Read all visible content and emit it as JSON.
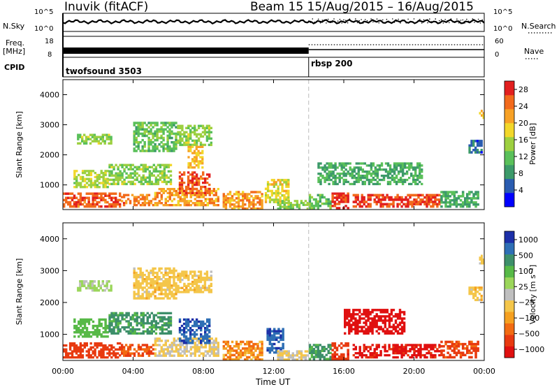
{
  "header": {
    "station": "Inuvik (fitACF)",
    "beam_range": "Beam 15  15/Aug/2015 – 16/Aug/2015"
  },
  "strips": {
    "nsky_label": "N.Sky",
    "nsky_ticks": [
      "10^5",
      "10^0"
    ],
    "nsearch_label": "N.Search",
    "nsearch_ticks": [
      "10^5",
      "10^0"
    ],
    "freq_label": "Freq.",
    "freq_unit": "[MHz]",
    "freq_ticks": [
      "18",
      "8"
    ],
    "nave_label": "Nave",
    "nave_ticks": [
      "60",
      "0"
    ],
    "cpid_label": "CPID",
    "cpid_segments": [
      {
        "label": "twofsound 3503",
        "start_hour": 0
      },
      {
        "label": "rbsp 200",
        "start_hour": 14
      }
    ]
  },
  "chart_data": [
    {
      "type": "heatmap",
      "panel": "power",
      "title": "",
      "xlabel": "Time UT",
      "ylabel": "Slant Range [km]",
      "x_ticks": [
        "00:00",
        "04:00",
        "08:00",
        "12:00",
        "16:00",
        "20:00",
        "00:00"
      ],
      "xlim_hours": [
        0,
        24
      ],
      "ylim": [
        180,
        4500
      ],
      "y_ticks": [
        1000,
        2000,
        3000,
        4000
      ],
      "colorbar": {
        "label": "Power [dB]",
        "ticks": [
          4,
          8,
          12,
          16,
          20,
          24,
          28
        ],
        "range": [
          0,
          30
        ],
        "colors": [
          "#0000ff",
          "#2a5cb0",
          "#3c9a6a",
          "#5ac05a",
          "#9dd040",
          "#f2d72a",
          "#f7a126",
          "#f26a1c",
          "#e21f1f"
        ]
      },
      "regions": [
        {
          "t0": 0.0,
          "t1": 3.3,
          "r0": 250,
          "r1": 750,
          "level": 26
        },
        {
          "t0": 3.3,
          "t1": 5.2,
          "r0": 300,
          "r1": 700,
          "level": 24
        },
        {
          "t0": 5.2,
          "t1": 8.9,
          "r0": 300,
          "r1": 900,
          "level": 22
        },
        {
          "t0": 6.6,
          "t1": 8.4,
          "r0": 700,
          "r1": 1450,
          "level": 26
        },
        {
          "t0": 0.6,
          "t1": 2.6,
          "r0": 900,
          "r1": 1500,
          "level": 16
        },
        {
          "t0": 2.6,
          "t1": 6.2,
          "r0": 1000,
          "r1": 1700,
          "level": 14
        },
        {
          "t0": 0.8,
          "t1": 2.8,
          "r0": 2350,
          "r1": 2700,
          "level": 14
        },
        {
          "t0": 4.0,
          "t1": 6.5,
          "r0": 2100,
          "r1": 3100,
          "level": 12
        },
        {
          "t0": 6.5,
          "t1": 8.5,
          "r0": 2300,
          "r1": 3000,
          "level": 14
        },
        {
          "t0": 7.1,
          "t1": 8.0,
          "r0": 1550,
          "r1": 2300,
          "level": 20
        },
        {
          "t0": 9.1,
          "t1": 11.4,
          "r0": 180,
          "r1": 800,
          "level": 22
        },
        {
          "t0": 11.5,
          "t1": 12.9,
          "r0": 400,
          "r1": 1200,
          "level": 18
        },
        {
          "t0": 12.2,
          "t1": 14.0,
          "r0": 180,
          "r1": 500,
          "level": 14
        },
        {
          "t0": 14.0,
          "t1": 15.3,
          "r0": 200,
          "r1": 700,
          "level": 12
        },
        {
          "t0": 15.3,
          "t1": 16.3,
          "r0": 200,
          "r1": 750,
          "level": 28
        },
        {
          "t0": 16.5,
          "t1": 21.5,
          "r0": 250,
          "r1": 700,
          "level": 27
        },
        {
          "t0": 21.5,
          "t1": 23.7,
          "r0": 250,
          "r1": 800,
          "level": 10
        },
        {
          "t0": 14.5,
          "t1": 20.5,
          "r0": 1000,
          "r1": 1750,
          "level": 10
        },
        {
          "t0": 23.1,
          "t1": 23.9,
          "r0": 2050,
          "r1": 2500,
          "level": 6
        },
        {
          "t0": 23.7,
          "t1": 24.0,
          "r0": 3200,
          "r1": 3500,
          "level": 20
        }
      ]
    },
    {
      "type": "heatmap",
      "panel": "velocity",
      "title": "",
      "xlabel": "Time UT",
      "ylabel": "Slant Range [km]",
      "x_ticks": [
        "00:00",
        "04:00",
        "08:00",
        "12:00",
        "16:00",
        "20:00",
        "00:00"
      ],
      "xlim_hours": [
        0,
        24
      ],
      "ylim": [
        180,
        4500
      ],
      "y_ticks": [
        1000,
        2000,
        3000,
        4000
      ],
      "colorbar": {
        "label": "Velocity [m s⁻¹]",
        "ticks": [
          "1000",
          "500",
          "100",
          "25",
          "−25",
          "−100",
          "−500",
          "−1000"
        ],
        "range": [
          -1000,
          1000
        ],
        "colors": [
          "#1c2fa8",
          "#2e6fb5",
          "#3d8f6a",
          "#57b947",
          "#9bd65a",
          "#bfbfbf",
          "#f4c64a",
          "#f5a020",
          "#f26b12",
          "#e83a10",
          "#e01010"
        ]
      },
      "regions": [
        {
          "t0": 0.0,
          "t1": 3.3,
          "r0": 250,
          "r1": 750,
          "level": -150
        },
        {
          "t0": 3.3,
          "t1": 5.2,
          "r0": 300,
          "r1": 700,
          "level": -100
        },
        {
          "t0": 5.2,
          "t1": 8.9,
          "r0": 300,
          "r1": 900,
          "level": 20
        },
        {
          "t0": 6.6,
          "t1": 8.4,
          "r0": 700,
          "r1": 1500,
          "level": 900
        },
        {
          "t0": 0.6,
          "t1": 2.6,
          "r0": 900,
          "r1": 1500,
          "level": 150
        },
        {
          "t0": 2.6,
          "t1": 6.2,
          "r0": 1000,
          "r1": 1700,
          "level": 300
        },
        {
          "t0": 0.8,
          "t1": 2.8,
          "r0": 2350,
          "r1": 2700,
          "level": 60
        },
        {
          "t0": 4.0,
          "t1": 6.5,
          "r0": 2100,
          "r1": 3100,
          "level": 0
        },
        {
          "t0": 6.5,
          "t1": 8.5,
          "r0": 2300,
          "r1": 3000,
          "level": 0
        },
        {
          "t0": 9.1,
          "t1": 11.4,
          "r0": 180,
          "r1": 800,
          "level": -50
        },
        {
          "t0": 11.6,
          "t1": 12.6,
          "r0": 400,
          "r1": 1200,
          "level": 900
        },
        {
          "t0": 12.2,
          "t1": 14.0,
          "r0": 180,
          "r1": 500,
          "level": 20
        },
        {
          "t0": 14.0,
          "t1": 15.3,
          "r0": 200,
          "r1": 700,
          "level": 300
        },
        {
          "t0": 15.3,
          "t1": 16.3,
          "r0": 200,
          "r1": 750,
          "level": -200
        },
        {
          "t0": 16.5,
          "t1": 21.5,
          "r0": 250,
          "r1": 700,
          "level": -300
        },
        {
          "t0": 21.5,
          "t1": 23.7,
          "r0": 250,
          "r1": 800,
          "level": -120
        },
        {
          "t0": 16.0,
          "t1": 19.5,
          "r0": 1000,
          "r1": 1800,
          "level": -400
        },
        {
          "t0": 23.1,
          "t1": 23.9,
          "r0": 2050,
          "r1": 2500,
          "level": 0
        },
        {
          "t0": 23.7,
          "t1": 24.0,
          "r0": 3200,
          "r1": 3500,
          "level": 0
        }
      ]
    }
  ]
}
